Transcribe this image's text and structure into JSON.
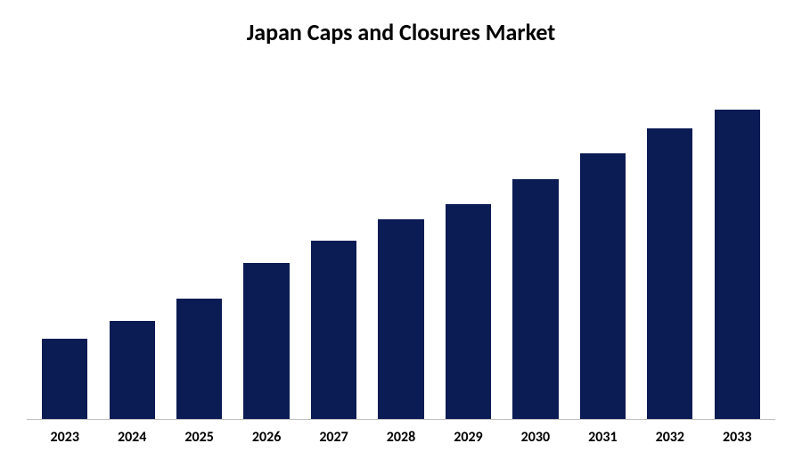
{
  "chart": {
    "type": "bar",
    "title": "Japan Caps and Closures Market",
    "title_fontsize": 26,
    "title_fontweight": 700,
    "title_color": "#000000",
    "categories": [
      "2023",
      "2024",
      "2025",
      "2026",
      "2027",
      "2028",
      "2029",
      "2030",
      "2031",
      "2032",
      "2033"
    ],
    "values": [
      22,
      27,
      33,
      43,
      49,
      55,
      59,
      66,
      73,
      80,
      85
    ],
    "ylim": [
      0,
      100
    ],
    "bar_color": "#0b1b54",
    "bar_width": 0.68,
    "background_color": "#ffffff",
    "axis_line_color": "#bfbfbf",
    "xlabel_fontsize": 16,
    "xlabel_fontweight": 700,
    "xlabel_color": "#000000"
  }
}
